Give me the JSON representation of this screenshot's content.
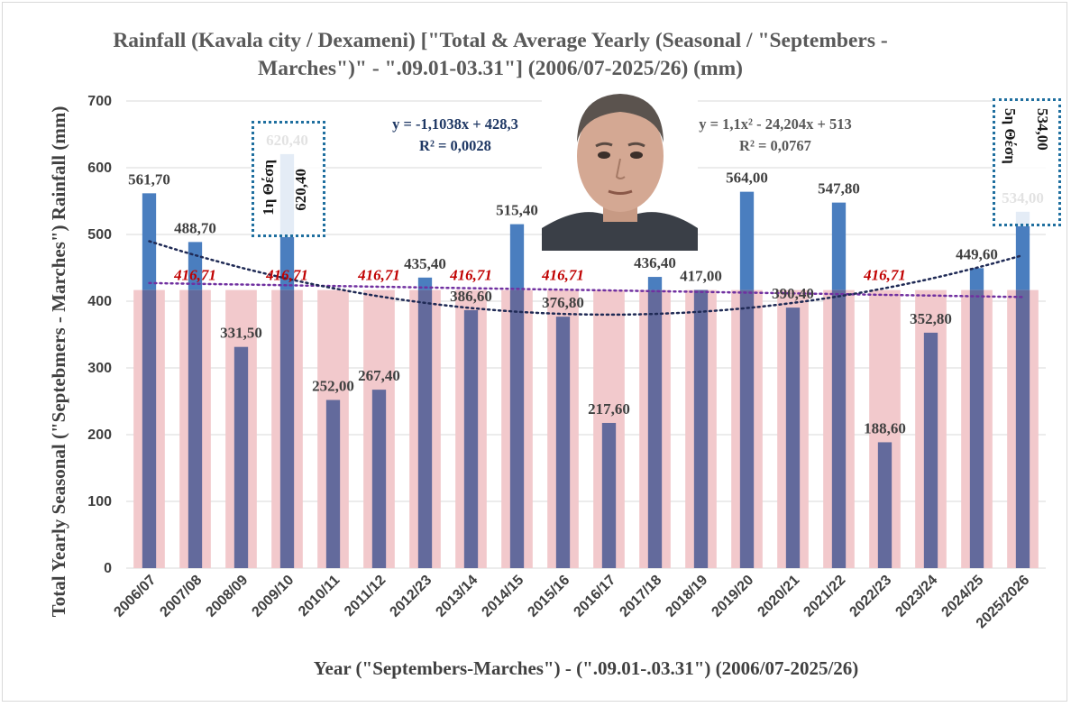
{
  "chart_data": {
    "type": "bar",
    "title": "Rainfall (Kavala city / Dexameni) [\"Total & Average Yearly (Seasonal / \"Septembers - Marches\")\" - \".09.01-03.31\"] (2006/07-2025/26) (mm)",
    "ylabel": "Total Yearly Seasonal (\"Septebmers - Marches\") Rainfall (mm)",
    "xlabel": "Year (\"Septembers-Marches\") - (\".09.01-.03.31\") (2006/07-2025/26)",
    "ylim": [
      0,
      700
    ],
    "yticks": [
      "0",
      "100",
      "200",
      "300",
      "400",
      "500",
      "600",
      "700"
    ],
    "categories": [
      "2006/07",
      "2007/08",
      "2008/09",
      "2009/10",
      "2010/11",
      "2011/12",
      "2012/23",
      "2013/14",
      "2014/15",
      "2015/16",
      "2016/17",
      "2017/18",
      "2018/19",
      "2019/20",
      "2020/21",
      "2021/22",
      "2022/23",
      "2023/24",
      "2024/25",
      "2025/2026"
    ],
    "series": [
      {
        "name": "Total",
        "values": [
          561.7,
          488.7,
          331.5,
          620.4,
          252.0,
          267.4,
          435.4,
          386.6,
          515.4,
          376.8,
          217.6,
          436.4,
          417.0,
          564.0,
          390.4,
          547.8,
          188.6,
          352.8,
          449.6,
          534.0
        ],
        "labels": [
          "561,70",
          "488,70",
          "331,50",
          "620,40",
          "252,00",
          "267,40",
          "435,40",
          "386,60",
          "515,40",
          "376,80",
          "217,60",
          "436,40",
          "417,00",
          "564,00",
          "390,40",
          "547,80",
          "188,60",
          "352,80",
          "449,60",
          "534,00"
        ]
      },
      {
        "name": "Average",
        "value": 416.71,
        "label": "416,71",
        "label_at": [
          1,
          3,
          5,
          7,
          9,
          16
        ]
      }
    ],
    "trendlines": {
      "linear": {
        "equation": "y = -1,1038x + 428,3",
        "r2": "R² = 0,0028",
        "slope": -1.1038,
        "intercept": 428.3
      },
      "poly": {
        "equation": "y = 1,1x² - 24,204x + 513",
        "r2": "R² = 0,0767",
        "a": 1.1,
        "b": -24.204,
        "c": 513
      }
    },
    "colors": {
      "total": "#4a7ebf",
      "average": "#f2c9cc",
      "overlap": "#636a9c",
      "avg_label": "#c00000",
      "linear_trend": "#7030a0",
      "poly_trend": "#1f2a55"
    }
  },
  "annotations": {
    "rank1": {
      "rank_text": "1η Θέση",
      "value": "620,40"
    },
    "rank5": {
      "rank_text": "5η Θέση",
      "value": "534,00"
    }
  },
  "photo": {
    "alt": "portrait"
  }
}
